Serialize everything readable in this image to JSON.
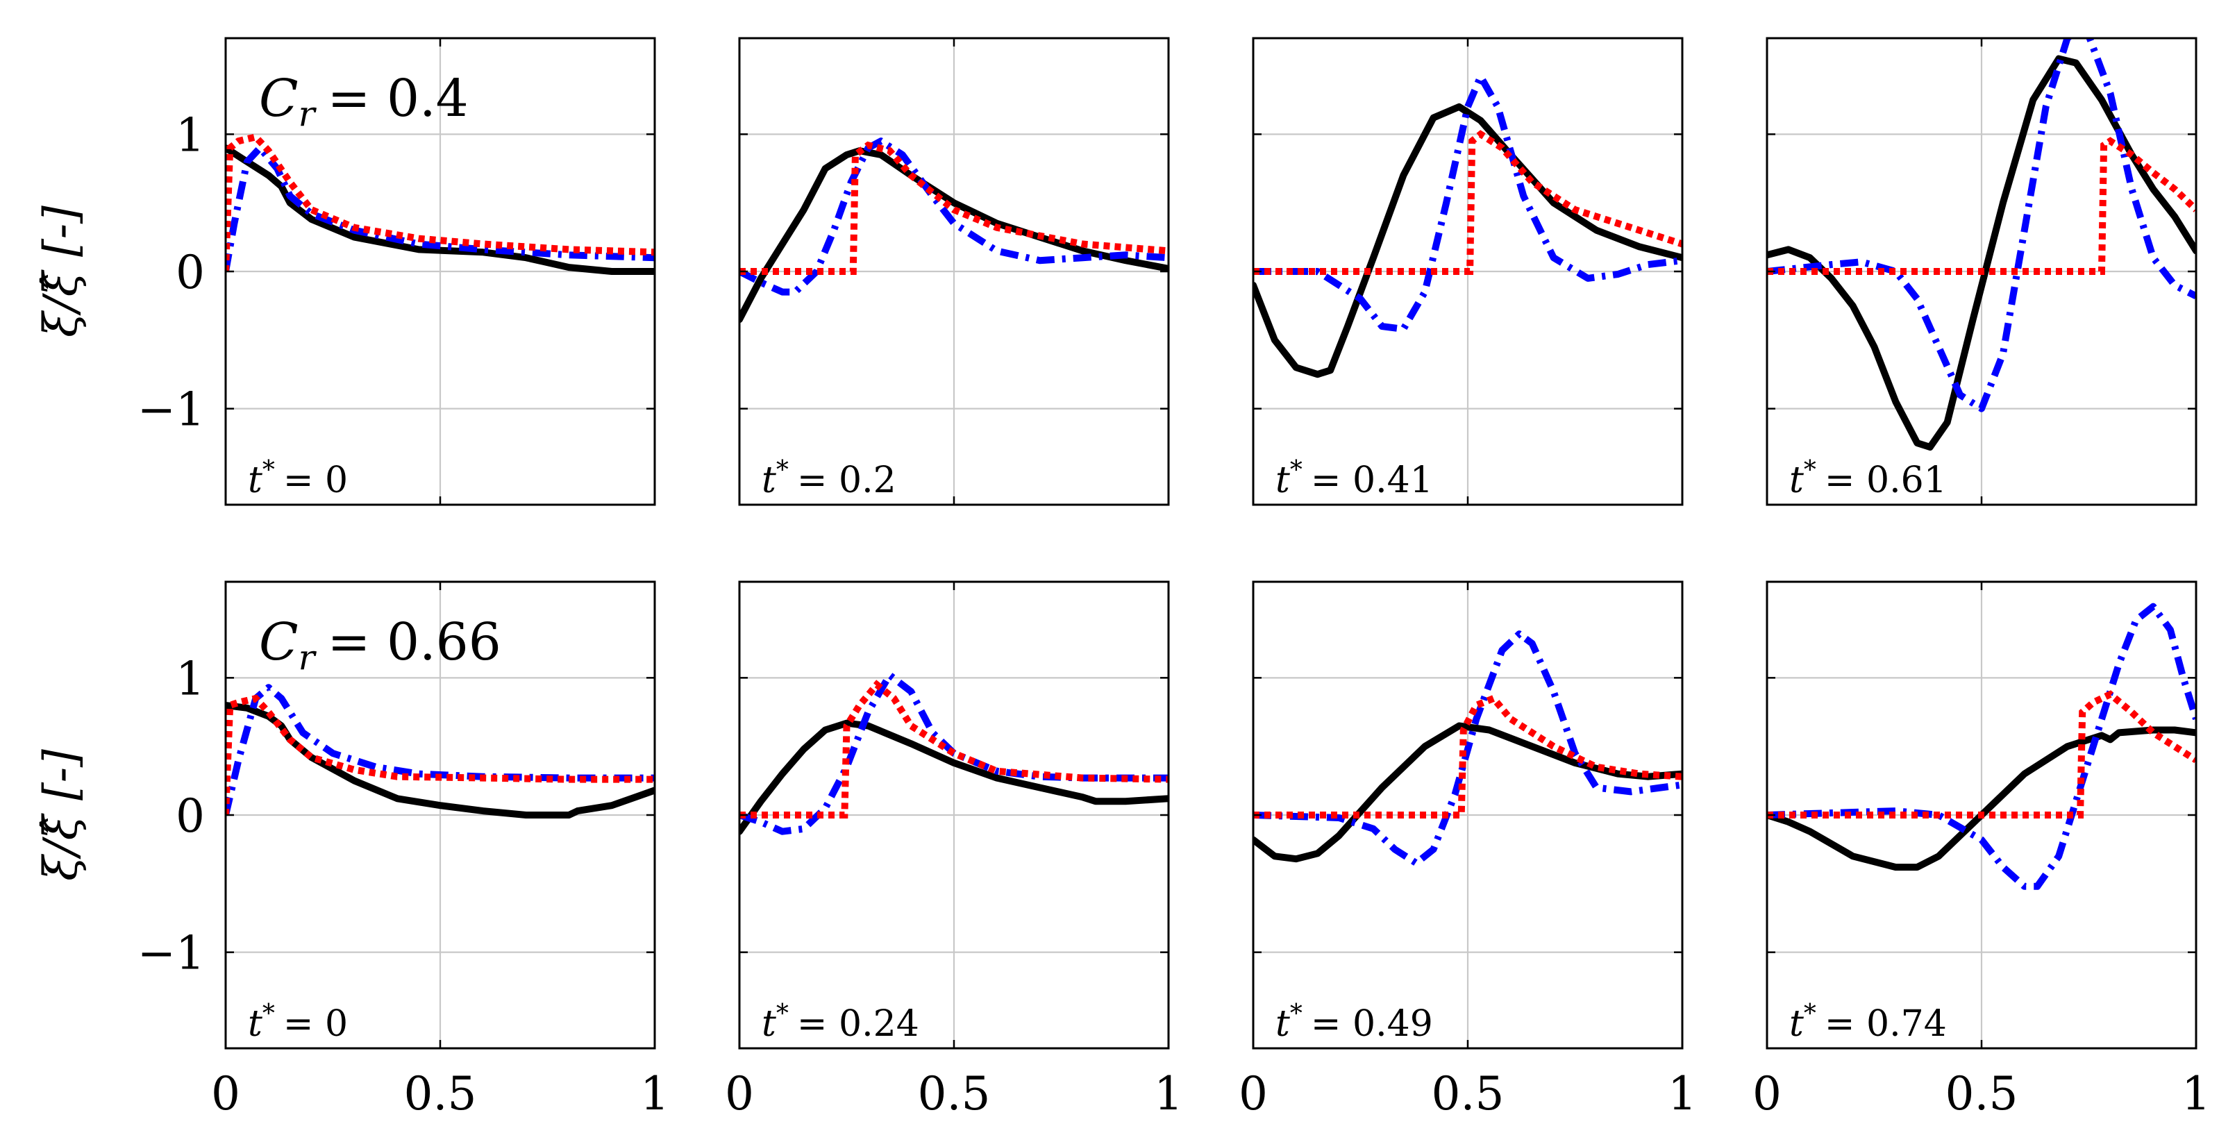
{
  "figure": {
    "ylabel": "ξ/ξ̂ [-]",
    "y_ticks": [
      -1,
      0,
      1
    ],
    "x_ticks": [
      0,
      0.5,
      1
    ],
    "x_tick_labels": [
      "0",
      "0.5",
      "1"
    ],
    "y_tick_labels": [
      "−1",
      "0",
      "1"
    ]
  },
  "rows": [
    {
      "cr_label": "C",
      "cr_sub": "r",
      "cr_value": "= 0.4"
    },
    {
      "cr_label": "C",
      "cr_sub": "r",
      "cr_value": "= 0.66"
    }
  ],
  "chart_data": [
    {
      "type": "line",
      "panel": "row1-col1",
      "title": "",
      "annotation": "t* = 0",
      "t_value": "= 0",
      "xlim": [
        0,
        1
      ],
      "ylim": [
        -1.7,
        1.7
      ],
      "series": [
        {
          "name": "black-solid",
          "color": "#000000",
          "x": [
            0,
            0.05,
            0.1,
            0.13,
            0.15,
            0.2,
            0.3,
            0.45,
            0.6,
            0.7,
            0.8,
            0.9,
            1.0
          ],
          "y": [
            0.9,
            0.8,
            0.7,
            0.62,
            0.5,
            0.38,
            0.25,
            0.16,
            0.14,
            0.1,
            0.03,
            0.0,
            0.0
          ]
        },
        {
          "name": "blue-dashdot",
          "color": "#0000ff",
          "x": [
            0,
            0.02,
            0.05,
            0.08,
            0.12,
            0.15,
            0.2,
            0.3,
            0.45,
            0.6,
            0.8,
            1.0
          ],
          "y": [
            0.0,
            0.35,
            0.8,
            0.9,
            0.75,
            0.55,
            0.42,
            0.3,
            0.2,
            0.16,
            0.12,
            0.1
          ]
        },
        {
          "name": "red-dotted",
          "color": "#ff0000",
          "x": [
            0,
            0.01,
            0.03,
            0.07,
            0.1,
            0.15,
            0.2,
            0.3,
            0.45,
            0.6,
            0.8,
            1.0
          ],
          "y": [
            0.0,
            0.9,
            0.95,
            0.98,
            0.88,
            0.65,
            0.45,
            0.32,
            0.24,
            0.2,
            0.16,
            0.14
          ]
        }
      ]
    },
    {
      "type": "line",
      "panel": "row1-col2",
      "title": "",
      "annotation": "t* = 0.2",
      "t_value": "= 0.2",
      "xlim": [
        0,
        1
      ],
      "ylim": [
        -1.7,
        1.7
      ],
      "series": [
        {
          "name": "black-solid",
          "color": "#000000",
          "x": [
            0,
            0.05,
            0.1,
            0.15,
            0.2,
            0.25,
            0.28,
            0.33,
            0.4,
            0.5,
            0.6,
            0.7,
            0.8,
            0.9,
            1.0
          ],
          "y": [
            -0.35,
            -0.05,
            0.2,
            0.45,
            0.75,
            0.85,
            0.88,
            0.85,
            0.7,
            0.5,
            0.35,
            0.25,
            0.15,
            0.08,
            0.02
          ]
        },
        {
          "name": "blue-dashdot",
          "color": "#0000ff",
          "x": [
            0,
            0.05,
            0.1,
            0.13,
            0.18,
            0.22,
            0.26,
            0.3,
            0.33,
            0.38,
            0.45,
            0.5,
            0.6,
            0.7,
            0.8,
            0.9,
            1.0
          ],
          "y": [
            0.0,
            -0.08,
            -0.15,
            -0.15,
            0.0,
            0.3,
            0.65,
            0.9,
            0.95,
            0.85,
            0.55,
            0.35,
            0.15,
            0.08,
            0.1,
            0.12,
            0.1
          ]
        },
        {
          "name": "red-dotted",
          "color": "#ff0000",
          "x": [
            0,
            0.265,
            0.27,
            0.3,
            0.35,
            0.4,
            0.5,
            0.6,
            0.8,
            1.0
          ],
          "y": [
            0.0,
            0.0,
            0.85,
            0.92,
            0.88,
            0.7,
            0.45,
            0.32,
            0.2,
            0.15
          ]
        }
      ]
    },
    {
      "type": "line",
      "panel": "row1-col3",
      "title": "",
      "annotation": "t* = 0.41",
      "t_value": "= 0.41",
      "xlim": [
        0,
        1
      ],
      "ylim": [
        -1.7,
        1.7
      ],
      "series": [
        {
          "name": "black-solid",
          "color": "#000000",
          "x": [
            0,
            0.05,
            0.1,
            0.15,
            0.18,
            0.22,
            0.28,
            0.35,
            0.42,
            0.48,
            0.53,
            0.6,
            0.7,
            0.8,
            0.9,
            1.0
          ],
          "y": [
            -0.1,
            -0.5,
            -0.7,
            -0.75,
            -0.72,
            -0.4,
            0.1,
            0.7,
            1.12,
            1.2,
            1.1,
            0.85,
            0.5,
            0.3,
            0.18,
            0.1
          ]
        },
        {
          "name": "blue-dashdot",
          "color": "#0000ff",
          "x": [
            0,
            0.15,
            0.25,
            0.3,
            0.35,
            0.4,
            0.45,
            0.5,
            0.53,
            0.57,
            0.63,
            0.7,
            0.78,
            0.85,
            0.92,
            1.0
          ],
          "y": [
            0.0,
            0.0,
            -0.2,
            -0.4,
            -0.42,
            -0.15,
            0.5,
            1.2,
            1.42,
            1.2,
            0.55,
            0.1,
            -0.05,
            -0.02,
            0.05,
            0.08
          ]
        },
        {
          "name": "red-dotted",
          "color": "#ff0000",
          "x": [
            0,
            0.505,
            0.51,
            0.53,
            0.58,
            0.65,
            0.75,
            0.85,
            1.0
          ],
          "y": [
            0.0,
            0.0,
            0.95,
            1.0,
            0.9,
            0.65,
            0.45,
            0.35,
            0.2
          ]
        }
      ]
    },
    {
      "type": "line",
      "panel": "row1-col4",
      "title": "",
      "annotation": "t* = 0.61",
      "t_value": "= 0.61",
      "xlim": [
        0,
        1
      ],
      "ylim": [
        -1.7,
        1.7
      ],
      "series": [
        {
          "name": "black-solid",
          "color": "#000000",
          "x": [
            0,
            0.05,
            0.1,
            0.15,
            0.2,
            0.25,
            0.3,
            0.35,
            0.38,
            0.42,
            0.48,
            0.55,
            0.62,
            0.68,
            0.72,
            0.78,
            0.85,
            0.9,
            0.95,
            1.0
          ],
          "y": [
            0.12,
            0.16,
            0.1,
            -0.05,
            -0.25,
            -0.55,
            -0.95,
            -1.25,
            -1.28,
            -1.1,
            -0.35,
            0.5,
            1.25,
            1.55,
            1.52,
            1.25,
            0.85,
            0.6,
            0.4,
            0.15
          ]
        },
        {
          "name": "blue-dashdot",
          "color": "#0000ff",
          "x": [
            0,
            0.15,
            0.22,
            0.3,
            0.35,
            0.4,
            0.45,
            0.5,
            0.55,
            0.6,
            0.65,
            0.7,
            0.74,
            0.8,
            0.85,
            0.9,
            0.95,
            1.0
          ],
          "y": [
            0.0,
            0.05,
            0.07,
            0.0,
            -0.2,
            -0.55,
            -0.9,
            -1.0,
            -0.6,
            0.3,
            1.2,
            1.7,
            1.8,
            1.3,
            0.6,
            0.1,
            -0.1,
            -0.18
          ]
        },
        {
          "name": "red-dotted",
          "color": "#ff0000",
          "x": [
            0,
            0.78,
            0.785,
            0.8,
            0.85,
            0.9,
            0.95,
            1.0
          ],
          "y": [
            0.0,
            0.0,
            0.92,
            0.95,
            0.85,
            0.72,
            0.6,
            0.45
          ]
        }
      ]
    },
    {
      "type": "line",
      "panel": "row2-col1",
      "title": "",
      "annotation": "t* = 0",
      "t_value": "= 0",
      "xlim": [
        0,
        1
      ],
      "ylim": [
        -1.7,
        1.7
      ],
      "series": [
        {
          "name": "black-solid",
          "color": "#000000",
          "x": [
            0,
            0.05,
            0.1,
            0.13,
            0.15,
            0.2,
            0.3,
            0.4,
            0.5,
            0.6,
            0.7,
            0.8,
            0.82,
            0.9,
            1.0
          ],
          "y": [
            0.8,
            0.78,
            0.72,
            0.65,
            0.55,
            0.42,
            0.25,
            0.12,
            0.07,
            0.03,
            0.0,
            0.0,
            0.03,
            0.07,
            0.18
          ]
        },
        {
          "name": "blue-dashdot",
          "color": "#0000ff",
          "x": [
            0,
            0.03,
            0.07,
            0.1,
            0.13,
            0.18,
            0.25,
            0.35,
            0.45,
            0.6,
            0.8,
            1.0
          ],
          "y": [
            0.0,
            0.4,
            0.85,
            0.93,
            0.85,
            0.6,
            0.45,
            0.35,
            0.3,
            0.28,
            0.27,
            0.27
          ]
        },
        {
          "name": "red-dotted",
          "color": "#ff0000",
          "x": [
            0,
            0.01,
            0.03,
            0.07,
            0.1,
            0.15,
            0.2,
            0.3,
            0.4,
            0.6,
            0.8,
            1.0
          ],
          "y": [
            0.0,
            0.8,
            0.82,
            0.85,
            0.75,
            0.55,
            0.42,
            0.33,
            0.28,
            0.27,
            0.26,
            0.26
          ]
        }
      ]
    },
    {
      "type": "line",
      "panel": "row2-col2",
      "title": "",
      "annotation": "t* = 0.24",
      "t_value": "= 0.24",
      "xlim": [
        0,
        1
      ],
      "ylim": [
        -1.7,
        1.7
      ],
      "series": [
        {
          "name": "black-solid",
          "color": "#000000",
          "x": [
            0,
            0.05,
            0.1,
            0.15,
            0.2,
            0.25,
            0.3,
            0.4,
            0.5,
            0.6,
            0.7,
            0.8,
            0.83,
            0.9,
            1.0
          ],
          "y": [
            -0.12,
            0.1,
            0.3,
            0.48,
            0.62,
            0.67,
            0.65,
            0.52,
            0.38,
            0.27,
            0.2,
            0.13,
            0.1,
            0.1,
            0.12
          ]
        },
        {
          "name": "blue-dashdot",
          "color": "#0000ff",
          "x": [
            0,
            0.05,
            0.1,
            0.15,
            0.2,
            0.25,
            0.3,
            0.35,
            0.4,
            0.45,
            0.5,
            0.6,
            0.7,
            0.8,
            1.0
          ],
          "y": [
            0.0,
            -0.05,
            -0.12,
            -0.1,
            0.05,
            0.35,
            0.75,
            1.02,
            0.9,
            0.6,
            0.45,
            0.32,
            0.28,
            0.27,
            0.27
          ]
        },
        {
          "name": "red-dotted",
          "color": "#ff0000",
          "x": [
            0,
            0.245,
            0.25,
            0.28,
            0.32,
            0.36,
            0.4,
            0.5,
            0.6,
            0.8,
            1.0
          ],
          "y": [
            0.0,
            0.0,
            0.65,
            0.8,
            0.95,
            0.85,
            0.65,
            0.45,
            0.32,
            0.27,
            0.26
          ]
        }
      ]
    },
    {
      "type": "line",
      "panel": "row2-col3",
      "title": "",
      "annotation": "t* = 0.49",
      "t_value": "= 0.49",
      "xlim": [
        0,
        1
      ],
      "ylim": [
        -1.7,
        1.7
      ],
      "series": [
        {
          "name": "black-solid",
          "color": "#000000",
          "x": [
            0,
            0.05,
            0.1,
            0.15,
            0.2,
            0.3,
            0.4,
            0.48,
            0.55,
            0.65,
            0.75,
            0.85,
            0.92,
            1.0
          ],
          "y": [
            -0.18,
            -0.3,
            -0.32,
            -0.28,
            -0.15,
            0.2,
            0.5,
            0.65,
            0.62,
            0.5,
            0.38,
            0.3,
            0.28,
            0.3
          ]
        },
        {
          "name": "blue-dashdot",
          "color": "#0000ff",
          "x": [
            0,
            0.2,
            0.28,
            0.33,
            0.38,
            0.42,
            0.47,
            0.52,
            0.58,
            0.62,
            0.65,
            0.7,
            0.75,
            0.8,
            0.88,
            0.95,
            1.0
          ],
          "y": [
            0.0,
            -0.02,
            -0.1,
            -0.25,
            -0.35,
            -0.25,
            0.15,
            0.7,
            1.2,
            1.32,
            1.25,
            0.9,
            0.45,
            0.2,
            0.17,
            0.2,
            0.22
          ]
        },
        {
          "name": "red-dotted",
          "color": "#ff0000",
          "x": [
            0,
            0.485,
            0.49,
            0.52,
            0.56,
            0.6,
            0.7,
            0.8,
            0.9,
            1.0
          ],
          "y": [
            0.0,
            0.0,
            0.62,
            0.8,
            0.85,
            0.7,
            0.5,
            0.35,
            0.3,
            0.28
          ]
        }
      ]
    },
    {
      "type": "line",
      "panel": "row2-col4",
      "title": "",
      "annotation": "t* = 0.74",
      "t_value": "= 0.74",
      "xlim": [
        0,
        1
      ],
      "ylim": [
        -1.7,
        1.7
      ],
      "series": [
        {
          "name": "black-solid",
          "color": "#000000",
          "x": [
            0,
            0.05,
            0.1,
            0.2,
            0.3,
            0.35,
            0.4,
            0.5,
            0.6,
            0.7,
            0.78,
            0.8,
            0.82,
            0.9,
            0.95,
            1.0
          ],
          "y": [
            0.0,
            -0.05,
            -0.12,
            -0.3,
            -0.38,
            -0.38,
            -0.3,
            0.0,
            0.3,
            0.5,
            0.58,
            0.55,
            0.6,
            0.62,
            0.62,
            0.6
          ]
        },
        {
          "name": "blue-dashdot",
          "color": "#0000ff",
          "x": [
            0,
            0.2,
            0.3,
            0.4,
            0.5,
            0.55,
            0.6,
            0.63,
            0.68,
            0.72,
            0.77,
            0.82,
            0.86,
            0.9,
            0.94,
            0.97,
            1.0
          ],
          "y": [
            0.0,
            0.02,
            0.03,
            0.0,
            -0.18,
            -0.38,
            -0.52,
            -0.52,
            -0.3,
            0.1,
            0.6,
            1.1,
            1.42,
            1.52,
            1.35,
            1.0,
            0.7
          ]
        },
        {
          "name": "red-dotted",
          "color": "#ff0000",
          "x": [
            0,
            0.73,
            0.735,
            0.76,
            0.8,
            0.85,
            0.9,
            0.95,
            1.0
          ],
          "y": [
            0.0,
            0.0,
            0.75,
            0.82,
            0.88,
            0.75,
            0.6,
            0.5,
            0.4
          ]
        }
      ]
    }
  ]
}
